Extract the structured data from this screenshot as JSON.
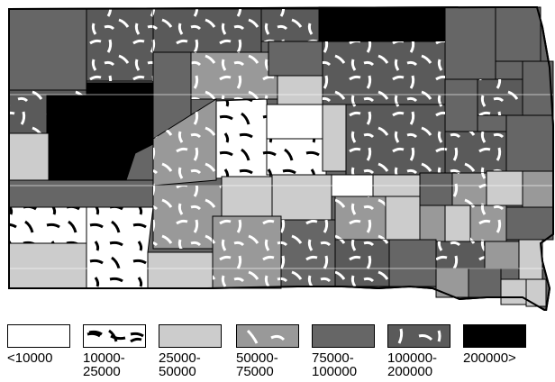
{
  "map": {
    "colors": {
      "c10k": "#ffffff",
      "c25k": "#ffffff",
      "c50k": "#cccccc",
      "c75k": "#999999",
      "c100k": "#666666",
      "c200k": "#5a5a5a",
      "cmax": "#000000"
    }
  },
  "legend": {
    "items": [
      {
        "key": "c10k",
        "label": "<10000",
        "pattern": "none",
        "color": "#ffffff"
      },
      {
        "key": "c25k",
        "label": "10000-\n25000",
        "pattern": "black-dashes",
        "color": "#ffffff"
      },
      {
        "key": "c50k",
        "label": "25000-\n50000",
        "pattern": "none",
        "color": "#cccccc"
      },
      {
        "key": "c75k",
        "label": "50000-\n75000",
        "pattern": "white-dashes",
        "color": "#999999"
      },
      {
        "key": "c100k",
        "label": "75000-\n100000",
        "pattern": "none",
        "color": "#666666"
      },
      {
        "key": "c200k",
        "label": "100000-\n200000",
        "pattern": "white-dashes",
        "color": "#5a5a5a"
      },
      {
        "key": "cmax",
        "label": "200000>",
        "pattern": "none",
        "color": "#000000"
      }
    ]
  }
}
